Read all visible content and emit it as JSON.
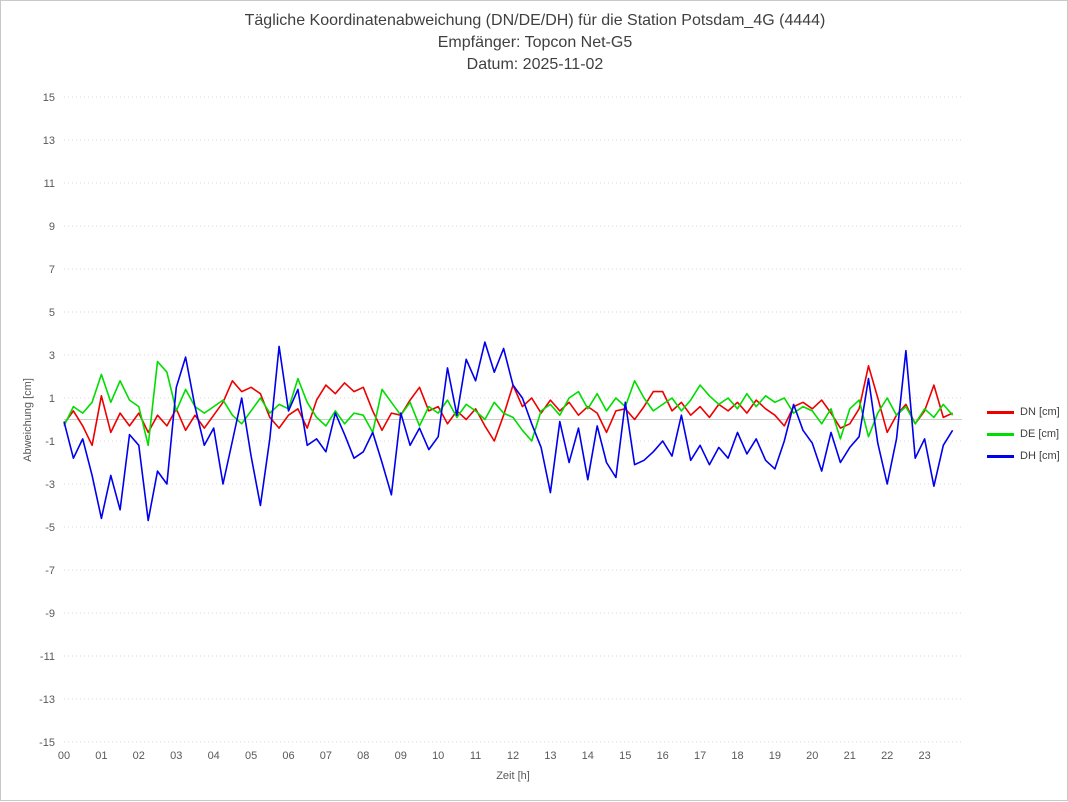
{
  "header": {
    "title": "Tägliche Koordinatenabweichung (DN/DE/DH) für die Station Potsdam_4G (4444)",
    "subtitle_receiver": "Empfänger: Topcon Net-G5",
    "subtitle_date": "Datum: 2025-11-02"
  },
  "axes": {
    "y_label": "Abweichung [cm]",
    "x_label": "Zeit [h]"
  },
  "colors": {
    "grid": "#d9d9d9",
    "zero_line": "#cccccc",
    "tick_text": "#595959",
    "title_text": "#404040"
  },
  "chart_data": {
    "type": "line",
    "title": "Tägliche Koordinatenabweichung (DN/DE/DH) für die Station Potsdam_4G (4444)",
    "subtitle_receiver": "Empfänger: Topcon Net-G5",
    "subtitle_date": "Datum: 2025-11-02",
    "xlabel": "Zeit [h]",
    "ylabel": "Abweichung [cm]",
    "xlim": [
      0,
      24
    ],
    "ylim": [
      -15,
      15
    ],
    "grid": "horizontal-dotted",
    "legend_position": "right-middle",
    "x_ticks": [
      "00",
      "01",
      "02",
      "03",
      "04",
      "05",
      "06",
      "07",
      "08",
      "09",
      "10",
      "11",
      "12",
      "13",
      "14",
      "15",
      "16",
      "17",
      "18",
      "19",
      "20",
      "21",
      "22",
      "23"
    ],
    "y_ticks": [
      15,
      13,
      11,
      9,
      7,
      5,
      3,
      1,
      -1,
      -3,
      -5,
      -7,
      -9,
      -11,
      -13,
      -15
    ],
    "t_start": 0,
    "t_step_hours": 0.25,
    "series": [
      {
        "id": "dn",
        "name": "DN [cm]",
        "color": "#ee0000",
        "values": [
          -0.2,
          0.4,
          -0.3,
          -1.2,
          1.1,
          -0.6,
          0.3,
          -0.3,
          0.3,
          -0.6,
          0.2,
          -0.3,
          0.5,
          -0.5,
          0.2,
          -0.4,
          0.2,
          0.8,
          1.8,
          1.3,
          1.5,
          1.2,
          0.1,
          -0.4,
          0.2,
          0.5,
          -0.4,
          0.9,
          1.6,
          1.2,
          1.7,
          1.3,
          1.5,
          0.4,
          -0.5,
          0.3,
          0.2,
          0.9,
          1.5,
          0.4,
          0.6,
          -0.2,
          0.4,
          0.0,
          0.5,
          -0.3,
          -1.0,
          0.2,
          1.6,
          0.6,
          1.0,
          0.3,
          0.9,
          0.4,
          0.8,
          0.2,
          0.6,
          0.3,
          -0.6,
          0.4,
          0.5,
          0.0,
          0.6,
          1.3,
          1.3,
          0.4,
          0.8,
          0.2,
          0.6,
          0.1,
          0.7,
          0.4,
          0.8,
          0.3,
          0.9,
          0.5,
          0.2,
          -0.3,
          0.6,
          0.8,
          0.5,
          0.9,
          0.3,
          -0.4,
          -0.2,
          0.5,
          2.5,
          1.0,
          -0.6,
          0.2,
          0.7,
          -0.2,
          0.4,
          1.6,
          0.1,
          0.3
        ]
      },
      {
        "id": "de",
        "name": "DE [cm]",
        "color": "#00dd00",
        "values": [
          -0.3,
          0.6,
          0.3,
          0.8,
          2.1,
          0.8,
          1.8,
          0.9,
          0.6,
          -1.2,
          2.7,
          2.2,
          0.4,
          1.4,
          0.6,
          0.3,
          0.6,
          0.9,
          0.2,
          -0.2,
          0.4,
          1.0,
          0.3,
          0.7,
          0.5,
          1.9,
          0.8,
          0.1,
          -0.3,
          0.4,
          -0.2,
          0.3,
          0.2,
          -0.6,
          1.4,
          0.8,
          0.2,
          0.8,
          -0.3,
          0.6,
          0.3,
          0.9,
          0.1,
          0.7,
          0.4,
          0.0,
          0.8,
          0.3,
          0.1,
          -0.5,
          -1.0,
          0.4,
          0.7,
          0.2,
          1.0,
          1.3,
          0.5,
          1.2,
          0.4,
          1.0,
          0.6,
          1.8,
          1.0,
          0.4,
          0.7,
          1.0,
          0.4,
          0.9,
          1.6,
          1.1,
          0.7,
          1.0,
          0.5,
          1.2,
          0.6,
          1.1,
          0.8,
          1.0,
          0.3,
          0.6,
          0.4,
          -0.2,
          0.5,
          -0.9,
          0.5,
          0.9,
          -0.8,
          0.3,
          1.0,
          0.2,
          0.6,
          -0.2,
          0.5,
          0.1,
          0.7,
          0.2
        ]
      },
      {
        "id": "dh",
        "name": "DH [cm]",
        "color": "#0000ee",
        "values": [
          -0.1,
          -1.8,
          -0.9,
          -2.6,
          -4.6,
          -2.6,
          -4.2,
          -0.7,
          -1.2,
          -4.7,
          -2.4,
          -3.0,
          1.5,
          2.9,
          0.6,
          -1.2,
          -0.4,
          -3.0,
          -1.0,
          1.0,
          -1.7,
          -4.0,
          -0.9,
          3.4,
          0.4,
          1.4,
          -1.2,
          -0.9,
          -1.5,
          0.3,
          -0.7,
          -1.8,
          -1.5,
          -0.6,
          -2.0,
          -3.5,
          0.3,
          -1.2,
          -0.4,
          -1.4,
          -0.8,
          2.4,
          0.2,
          2.8,
          1.8,
          3.6,
          2.2,
          3.3,
          1.6,
          1.0,
          -0.2,
          -1.3,
          -3.4,
          -0.1,
          -2.0,
          -0.4,
          -2.8,
          -0.3,
          -2.0,
          -2.7,
          0.8,
          -2.1,
          -1.9,
          -1.5,
          -1.0,
          -1.7,
          0.2,
          -1.9,
          -1.2,
          -2.1,
          -1.3,
          -1.8,
          -0.6,
          -1.6,
          -0.9,
          -1.9,
          -2.3,
          -1.0,
          0.7,
          -0.5,
          -1.1,
          -2.4,
          -0.6,
          -2.0,
          -1.3,
          -0.8,
          1.9,
          -1.1,
          -3.0,
          -0.9,
          3.2,
          -1.8,
          -0.9,
          -3.1,
          -1.2,
          -0.5
        ]
      }
    ]
  }
}
